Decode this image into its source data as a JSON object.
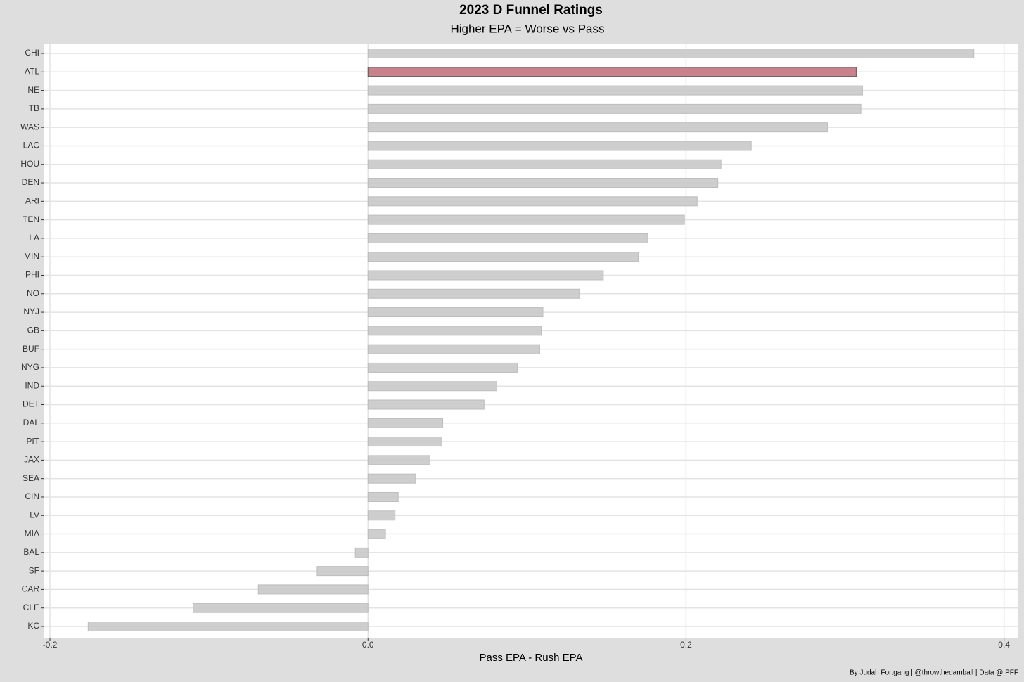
{
  "chart_data": {
    "type": "barh",
    "title": "2023 D Funnel Ratings",
    "subtitle": "Higher EPA = Worse vs Pass",
    "x_label": "Pass EPA - Rush EPA",
    "caption": "By Judah Fortgang | @throwthedamball | Data @ PFF",
    "categories": [
      "CHI",
      "ATL",
      "NE",
      "TB",
      "WAS",
      "LAC",
      "HOU",
      "DEN",
      "ARI",
      "TEN",
      "LA",
      "MIN",
      "PHI",
      "NO",
      "NYJ",
      "GB",
      "BUF",
      "NYG",
      "IND",
      "DET",
      "DAL",
      "PIT",
      "JAX",
      "SEA",
      "CIN",
      "LV",
      "MIA",
      "BAL",
      "SF",
      "CAR",
      "CLE",
      "KC"
    ],
    "values": [
      0.381,
      0.307,
      0.311,
      0.31,
      0.289,
      0.241,
      0.222,
      0.22,
      0.207,
      0.199,
      0.176,
      0.17,
      0.148,
      0.133,
      0.11,
      0.109,
      0.108,
      0.094,
      0.081,
      0.073,
      0.047,
      0.046,
      0.039,
      0.03,
      0.019,
      0.017,
      0.011,
      -0.008,
      -0.032,
      -0.069,
      -0.11,
      -0.176
    ],
    "colors": [
      "#c9c9c9",
      "#c27480",
      "#c9c9c9",
      "#c9c9c9",
      "#c9c9c9",
      "#c9c9c9",
      "#c9c9c9",
      "#c9c9c9",
      "#c9c9c9",
      "#c9c9c9",
      "#c9c9c9",
      "#c9c9c9",
      "#c9c9c9",
      "#c9c9c9",
      "#c9c9c9",
      "#c9c9c9",
      "#c9c9c9",
      "#c9c9c9",
      "#c9c9c9",
      "#c9c9c9",
      "#c9c9c9",
      "#c9c9c9",
      "#c9c9c9",
      "#c9c9c9",
      "#c9c9c9",
      "#c9c9c9",
      "#c9c9c9",
      "#c9c9c9",
      "#c9c9c9",
      "#c9c9c9",
      "#c9c9c9",
      "#c9c9c9"
    ],
    "xlim": [
      -0.204,
      0.409
    ],
    "xticks": [
      -0.2,
      {
        "value": 0,
        "label": "0.0"
      },
      0.2,
      0.4
    ],
    "grid": true
  }
}
